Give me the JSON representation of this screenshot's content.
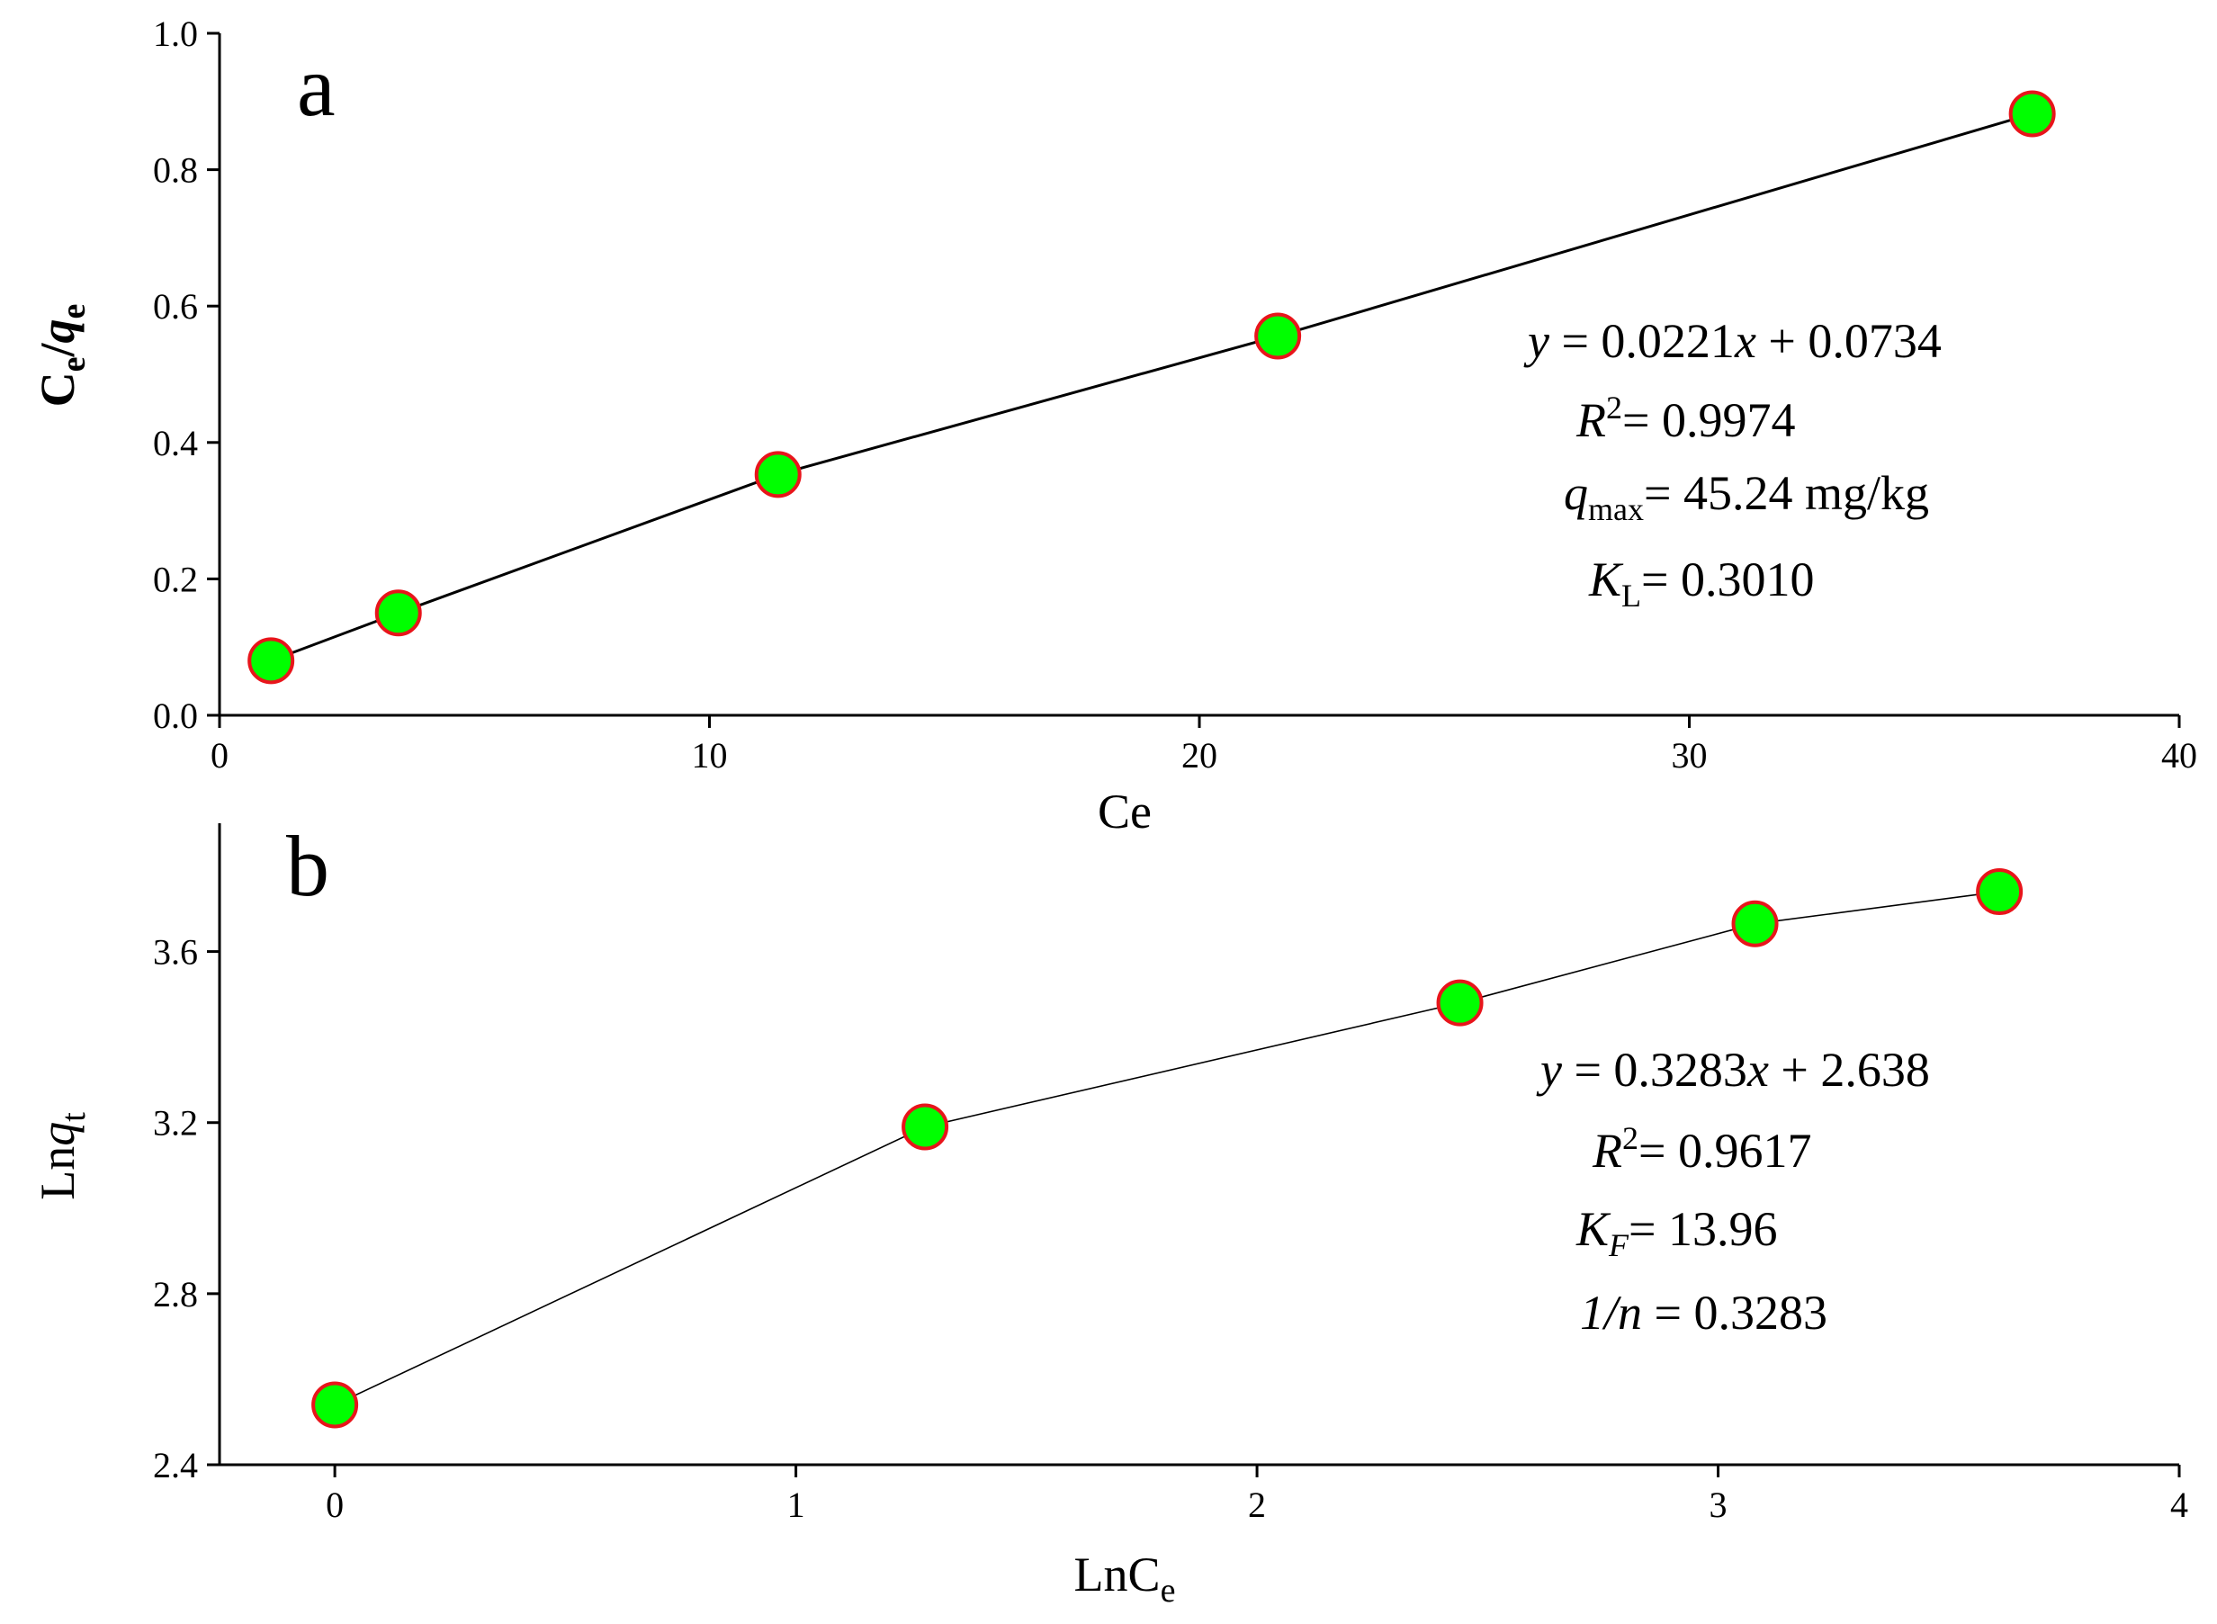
{
  "chart_data": [
    {
      "type": "line",
      "panel_label": "a",
      "xlabel": "Ce",
      "ylabel": {
        "base": "C",
        "sub1": "e",
        "slash": "/",
        "base2": "q",
        "sub2": "e"
      },
      "xlim": [
        0,
        40
      ],
      "ylim": [
        0,
        1.0
      ],
      "xticks": [
        0,
        10,
        20,
        30,
        40
      ],
      "xtick_labels": [
        "0",
        "10",
        "20",
        "30",
        "40"
      ],
      "yticks": [
        0,
        0.2,
        0.4,
        0.6,
        0.8,
        1.0
      ],
      "ytick_labels": [
        "0.0",
        "0.2",
        "0.4",
        "0.6",
        "0.8",
        "1.0"
      ],
      "marker": {
        "fill": "#00ff00",
        "stroke": "#e8151b",
        "shape": "circle"
      },
      "line_color": "#000000",
      "grid": false,
      "points": [
        {
          "x": 1.05,
          "y": 0.08
        },
        {
          "x": 3.65,
          "y": 0.15
        },
        {
          "x": 11.4,
          "y": 0.353
        },
        {
          "x": 21.6,
          "y": 0.556
        },
        {
          "x": 37.0,
          "y": 0.882
        }
      ],
      "annotations": {
        "line1": {
          "a": "y",
          "b": " = 0.0221",
          "c": "x",
          "d": " + 0.0734"
        },
        "line2": {
          "a": "R",
          "sup": "2",
          "b": "= 0.9974"
        },
        "line3": {
          "a": "q",
          "sub": "max",
          "b": "= 45.24 mg/kg"
        },
        "line4": {
          "a": "K",
          "sub": "L",
          "b": "= 0.3010"
        }
      }
    },
    {
      "type": "line",
      "panel_label": "b",
      "xlabel": {
        "base": "LnC",
        "sub": "e"
      },
      "ylabel": {
        "base": "Ln",
        "base2": "q",
        "sub": "t"
      },
      "xlim": [
        -0.25,
        4
      ],
      "ylim": [
        2.4,
        3.9
      ],
      "xticks": [
        0,
        1,
        2,
        3,
        4
      ],
      "xtick_labels": [
        "0",
        "1",
        "2",
        "3",
        "4"
      ],
      "yticks": [
        2.4,
        2.8,
        3.2,
        3.6
      ],
      "ytick_labels": [
        "2.4",
        "2.8",
        "3.2",
        "3.6"
      ],
      "marker": {
        "fill": "#00ff00",
        "stroke": "#e8151b",
        "shape": "circle"
      },
      "line_color": "#000000",
      "grid": false,
      "points": [
        {
          "x": 0.0,
          "y": 2.54
        },
        {
          "x": 1.28,
          "y": 3.19
        },
        {
          "x": 2.44,
          "y": 3.48
        },
        {
          "x": 3.08,
          "y": 3.665
        },
        {
          "x": 3.61,
          "y": 3.74
        }
      ],
      "annotations": {
        "line1": {
          "a": "y",
          "b": " = 0.3283",
          "c": "x",
          "d": " + 2.638"
        },
        "line2": {
          "a": "R",
          "sup": "2",
          "b": "= 0.9617"
        },
        "line3": {
          "a": "K",
          "sub": "F",
          "b": "= 13.96"
        },
        "line4": {
          "a": "1/n",
          "b": " = 0.3283"
        }
      }
    }
  ]
}
